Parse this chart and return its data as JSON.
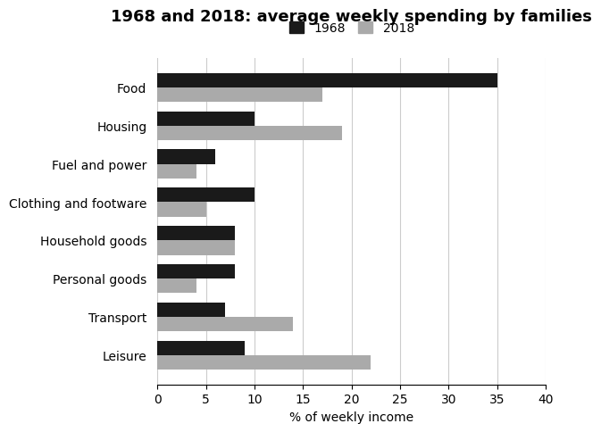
{
  "title": "1968 and 2018: average weekly spending by families",
  "xlabel": "% of weekly income",
  "categories": [
    "Food",
    "Housing",
    "Fuel and power",
    "Clothing and footware",
    "Household goods",
    "Personal goods",
    "Transport",
    "Leisure"
  ],
  "values_1968": [
    35,
    10,
    6,
    10,
    8,
    8,
    7,
    9
  ],
  "values_2018": [
    17,
    19,
    4,
    5,
    8,
    4,
    14,
    22
  ],
  "color_1968": "#1a1a1a",
  "color_2018": "#aaaaaa",
  "xlim": [
    0,
    40
  ],
  "xticks": [
    0,
    5,
    10,
    15,
    20,
    25,
    30,
    35,
    40
  ],
  "legend_labels": [
    "1968",
    "2018"
  ],
  "bar_height": 0.38,
  "grid_color": "#cccccc",
  "background_color": "#ffffff",
  "title_fontsize": 13,
  "label_fontsize": 10,
  "tick_fontsize": 10
}
